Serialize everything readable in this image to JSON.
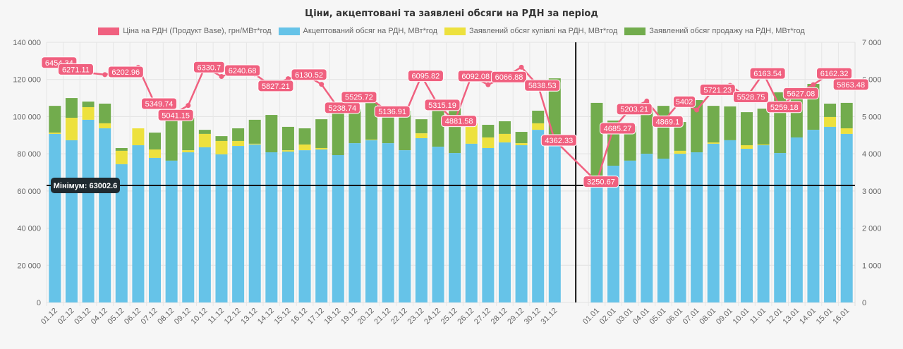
{
  "chart_data": {
    "type": "bar",
    "title": "Ціни, акцептовані та заявлені обсяги на РДН за період",
    "legend": [
      {
        "name": "Ціна на РДН (Продукт Base), грн/МВт*год",
        "color": "#f0607f"
      },
      {
        "name": "Акцептований обсяг на РДН, МВт*год",
        "color": "#66c3e8"
      },
      {
        "name": "Заявлений обсяг купівлі на РДН, МВт*год",
        "color": "#ede13e"
      },
      {
        "name": "Заявлений обсяг продажу на РДН, МВт*год",
        "color": "#72ac4d"
      }
    ],
    "legend_position": "top",
    "categories": [
      "01.12",
      "02.12",
      "03.12",
      "04.12",
      "05.12",
      "06.12",
      "07.12",
      "08.12",
      "09.12",
      "10.12",
      "11.12",
      "12.12",
      "13.12",
      "14.12",
      "15.12",
      "16.12",
      "17.12",
      "18.12",
      "19.12",
      "20.12",
      "21.12",
      "22.12",
      "23.12",
      "24.12",
      "25.12",
      "26.12",
      "27.12",
      "28.12",
      "29.12",
      "30.12",
      "31.12",
      "01.01",
      "02.01",
      "03.01",
      "04.01",
      "05.01",
      "06.01",
      "07.01",
      "08.01",
      "09.01",
      "10.01",
      "11.01",
      "12.01",
      "13.01",
      "14.01",
      "15.01",
      "16.01"
    ],
    "series": [
      {
        "name": "Акцептований обсяг на РДН, МВт*год",
        "axis": "left",
        "kind": "bar",
        "values": [
          90700,
          87300,
          98300,
          93700,
          74400,
          84600,
          77800,
          76300,
          80800,
          83500,
          79700,
          84200,
          85000,
          80800,
          81200,
          81900,
          82300,
          79300,
          85700,
          87300,
          85700,
          81900,
          88400,
          83800,
          80400,
          85400,
          83100,
          86100,
          84600,
          92900,
          84200,
          63000,
          73600,
          76300,
          80000,
          77400,
          80000,
          80800,
          85400,
          87300,
          82700,
          84600,
          80400,
          88800,
          92900,
          94500,
          90700
        ]
      },
      {
        "name": "Заявлений обсяг купівлі на РДН, МВт*год",
        "axis": "left",
        "kind": "bar-top",
        "values": [
          91400,
          99400,
          105100,
          96400,
          81600,
          93700,
          82300,
          76300,
          81900,
          90700,
          86900,
          86900,
          85400,
          80800,
          81900,
          85000,
          83100,
          79300,
          85700,
          87600,
          85700,
          81900,
          91000,
          83800,
          80400,
          96400,
          88800,
          90700,
          85700,
          96400,
          84200,
          63000,
          73600,
          76300,
          80000,
          77400,
          81600,
          80800,
          86100,
          87300,
          84600,
          85000,
          80400,
          88800,
          92900,
          99800,
          93700
        ]
      },
      {
        "name": "Заявлений обсяг продажу на РДН, МВт*год",
        "axis": "left",
        "kind": "bar-top",
        "values": [
          105800,
          110000,
          108100,
          107000,
          83100,
          93700,
          91400,
          97900,
          99400,
          92900,
          89500,
          93700,
          98300,
          100900,
          94500,
          93700,
          98600,
          103900,
          103900,
          107700,
          105100,
          103200,
          98600,
          104700,
          104700,
          96400,
          95600,
          97500,
          91800,
          103200,
          120600,
          107400,
          97900,
          94800,
          104300,
          105800,
          97100,
          108900,
          105800,
          105500,
          102400,
          104300,
          113100,
          109600,
          117600,
          107000,
          107400
        ]
      },
      {
        "name": "Ціна на РДН (Продукт Base), грн/МВт*год",
        "axis": "right",
        "kind": "line",
        "values": [
          6454.34,
          6271.11,
          6180,
          6130,
          6202.96,
          6330,
          5349.74,
          5041.15,
          5300,
          6330.7,
          6080,
          6240.68,
          6140,
          5827.21,
          6020,
          6130.52,
          5870,
          5238.74,
          5525.72,
          5460,
          5136.91,
          5040,
          6095.82,
          5315.19,
          4881.58,
          6092.08,
          5860,
          6066.88,
          6330,
          5838.53,
          4362.33,
          3250.67,
          4685.27,
          5203.21,
          5420,
          4869.1,
          5402,
          5180,
          5721.23,
          5840,
          5528.75,
          6163.54,
          5259.18,
          5627.08,
          5860,
          6162.32,
          5863.48
        ],
        "labels": [
          "6454.34",
          "6271.11",
          "",
          "",
          "6202.96",
          "",
          "5349.74",
          "5041.15",
          "",
          "6330.7",
          "",
          "6240.68",
          "",
          "5827.21",
          "",
          "6130.52",
          "",
          "5238.74",
          "5525.72",
          "",
          "5136.91",
          "",
          "6095.82",
          "5315.19",
          "4881.58",
          "6092.08",
          "",
          "6066.88",
          "",
          "5838.53",
          "4362.33",
          "3250.67",
          "4685.27",
          "5203.21",
          "",
          "4869.1",
          "5402",
          "",
          "5721.23",
          "",
          "5528.75",
          "6163.54",
          "5259.18",
          "5627.08",
          "",
          "6162.32",
          "5863.48"
        ]
      }
    ],
    "y_left": {
      "min": 0,
      "max": 140000,
      "ticks": [
        "0",
        "20 000",
        "40 000",
        "60 000",
        "80 000",
        "100 000",
        "120 000",
        "140 000"
      ]
    },
    "y_right": {
      "min": 0,
      "max": 7000,
      "ticks": [
        "0",
        "1 000",
        "2 000",
        "3 000",
        "4 000",
        "5 000",
        "6 000",
        "7 000"
      ]
    },
    "annotations": {
      "minimum_line": {
        "value": 63002.6,
        "label": "Мінімум: 63002.6"
      },
      "separator_between": [
        "31.12",
        "01.01"
      ]
    },
    "grid": true,
    "xlabel": "",
    "ylabel": ""
  }
}
